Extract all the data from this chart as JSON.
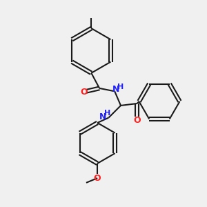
{
  "bg_color": "#f0f0f0",
  "bond_color": "#1a1a1a",
  "N_color": "#2020ff",
  "O_color": "#ff2020",
  "line_width": 1.5,
  "font_size_N": 9,
  "font_size_O": 9,
  "font_size_H": 8,
  "figsize": [
    3.0,
    3.0
  ],
  "dpi": 100,
  "xlim": [
    0,
    10
  ],
  "ylim": [
    0,
    10
  ]
}
